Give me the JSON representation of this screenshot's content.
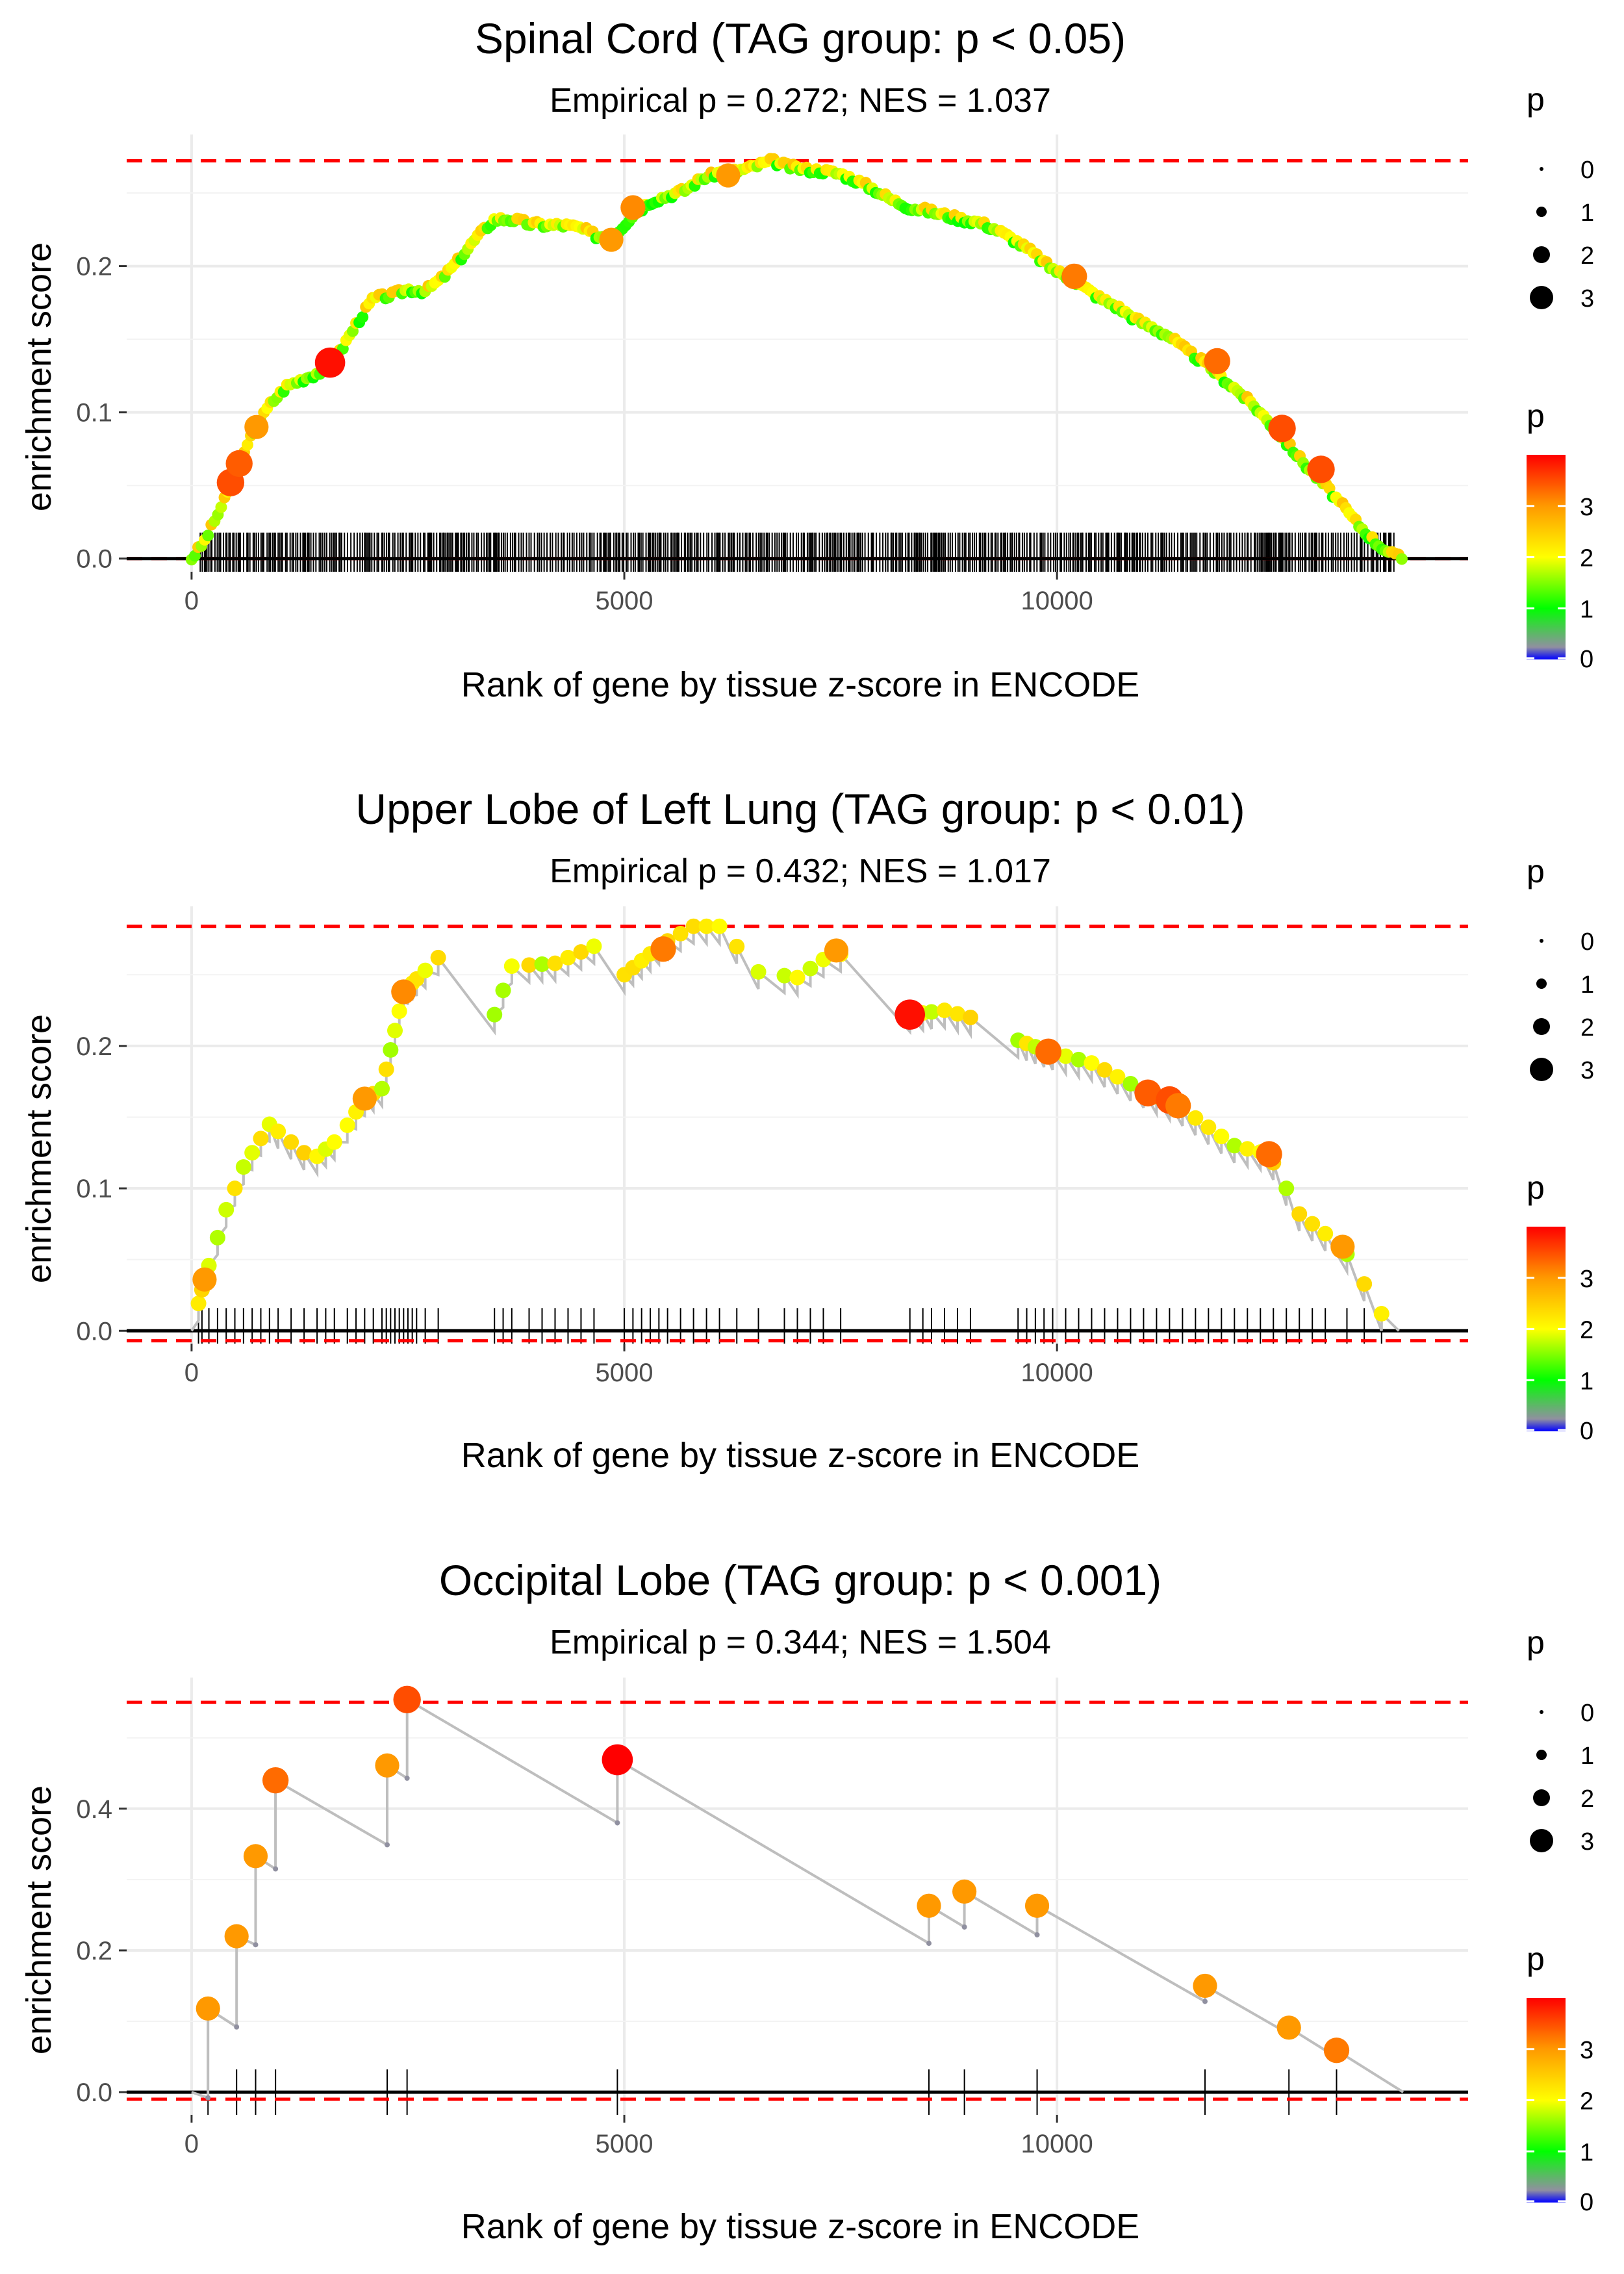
{
  "colors": {
    "threshold_line": "#ff0000",
    "running_line": "#bebebe",
    "zero_line": "#000000",
    "gridline": "#ebebeb",
    "colorbar": [
      "#0000ff",
      "#9090a0",
      "#00ff00",
      "#ffff00",
      "#ff9900",
      "#ff0000"
    ]
  },
  "legend": {
    "size_title": "p",
    "size_labels": [
      "0",
      "1",
      "2",
      "3"
    ],
    "color_title": "p",
    "color_labels": [
      "0",
      "1",
      "2",
      "3"
    ]
  },
  "chart_data": [
    {
      "type": "scatter",
      "title": "Spinal Cord (TAG group: p < 0.05)",
      "subtitle": "Empirical p = 0.272; NES = 1.037",
      "xlabel": "Rank of gene by tissue z-score in ENCODE",
      "ylabel": "enrichment score",
      "xlim": [
        -750,
        14750
      ],
      "ylim": [
        -0.009,
        0.29
      ],
      "xticks": [
        0,
        5000,
        10000
      ],
      "xtick_labels": [
        "0",
        "5000",
        "10000"
      ],
      "yticks": [
        0.0,
        0.1,
        0.2
      ],
      "ytick_labels": [
        "0.0",
        "0.1",
        "0.2"
      ],
      "max_es": 0.272,
      "min_es": 0.0,
      "dense": true,
      "curve_x": [
        0,
        150,
        300,
        500,
        700,
        900,
        1100,
        1300,
        1500,
        1700,
        1900,
        2100,
        2300,
        2500,
        2700,
        2900,
        3100,
        3300,
        3500,
        3700,
        3900,
        4100,
        4300,
        4500,
        4700,
        4900,
        5100,
        5300,
        5500,
        5700,
        5900,
        6100,
        6300,
        6500,
        6700,
        6900,
        7100,
        7300,
        7500,
        7700,
        7900,
        8100,
        8300,
        8500,
        8700,
        8900,
        9100,
        9300,
        9500,
        9700,
        9900,
        10100,
        10300,
        10500,
        10700,
        10900,
        11100,
        11300,
        11500,
        11700,
        11900,
        12100,
        12300,
        12500,
        12700,
        12900,
        13100,
        13300,
        13500,
        13700,
        13900,
        14000
      ],
      "curve_y": [
        0.0,
        0.012,
        0.03,
        0.055,
        0.085,
        0.105,
        0.118,
        0.123,
        0.128,
        0.14,
        0.16,
        0.178,
        0.18,
        0.184,
        0.183,
        0.192,
        0.205,
        0.22,
        0.232,
        0.232,
        0.229,
        0.228,
        0.228,
        0.226,
        0.22,
        0.222,
        0.235,
        0.244,
        0.248,
        0.252,
        0.26,
        0.264,
        0.265,
        0.268,
        0.272,
        0.268,
        0.266,
        0.265,
        0.263,
        0.258,
        0.252,
        0.245,
        0.24,
        0.238,
        0.235,
        0.232,
        0.23,
        0.225,
        0.218,
        0.21,
        0.2,
        0.193,
        0.186,
        0.178,
        0.172,
        0.164,
        0.158,
        0.152,
        0.142,
        0.134,
        0.124,
        0.114,
        0.103,
        0.09,
        0.076,
        0.062,
        0.05,
        0.036,
        0.022,
        0.01,
        0.002,
        0.0
      ],
      "highlight_x": [
        450,
        550,
        750,
        1600,
        4850,
        5100,
        6200,
        10200,
        11850,
        12600,
        13050
      ],
      "highlight_y": [
        0.052,
        0.065,
        0.09,
        0.134,
        0.218,
        0.24,
        0.262,
        0.193,
        0.135,
        0.089,
        0.061
      ],
      "highlight_p": [
        3.5,
        3.4,
        3.0,
        3.9,
        3.0,
        3.1,
        3.0,
        3.2,
        3.3,
        3.5,
        3.5
      ],
      "hit_ranks": "dense ticks spanning 100 to 13900"
    },
    {
      "type": "scatter",
      "title": "Upper Lobe of Left Lung (TAG group: p < 0.01)",
      "subtitle": "Empirical p = 0.432; NES = 1.017",
      "xlabel": "Rank of gene by tissue z-score in ENCODE",
      "ylabel": "enrichment score",
      "xlim": [
        -750,
        14750
      ],
      "ylim": [
        -0.009,
        0.298
      ],
      "xticks": [
        0,
        5000,
        10000
      ],
      "xtick_labels": [
        "0",
        "5000",
        "10000"
      ],
      "yticks": [
        0.0,
        0.1,
        0.2
      ],
      "ytick_labels": [
        "0.0",
        "0.1",
        "0.2"
      ],
      "max_es": 0.284,
      "min_es": -0.007,
      "hits_x": [
        80,
        120,
        200,
        300,
        400,
        500,
        600,
        700,
        800,
        900,
        1000,
        1150,
        1300,
        1450,
        1550,
        1650,
        1800,
        1900,
        2000,
        2100,
        2200,
        2250,
        2300,
        2350,
        2400,
        2450,
        2500,
        2550,
        2600,
        2700,
        2850,
        3500,
        3600,
        3700,
        3900,
        4050,
        4200,
        4350,
        4500,
        4650,
        5000,
        5100,
        5200,
        5300,
        5400,
        5500,
        5650,
        5800,
        5950,
        6100,
        6300,
        6550,
        6850,
        7000,
        7150,
        7300,
        7500,
        8300,
        8450,
        8550,
        8700,
        8850,
        9000,
        9550,
        9650,
        9750,
        9850,
        9950,
        10100,
        10250,
        10400,
        10550,
        10700,
        10850,
        11000,
        11150,
        11300,
        11450,
        11600,
        11750,
        11900,
        12050,
        12200,
        12350,
        12500,
        12650,
        12800,
        12950,
        13100,
        13350,
        13550,
        13750
      ],
      "highlight_x": [
        150,
        2000,
        2450,
        5450,
        7450,
        8300,
        9900,
        11050,
        11300,
        11400,
        12450,
        13300
      ],
      "highlight_y": [
        0.036,
        0.163,
        0.238,
        0.268,
        0.267,
        0.222,
        0.196,
        0.167,
        0.162,
        0.158,
        0.124,
        0.059
      ],
      "highlight_p": [
        3.0,
        3.0,
        3.1,
        3.2,
        3.0,
        3.9,
        3.3,
        3.4,
        3.5,
        3.2,
        3.3,
        3.0
      ],
      "hit_ranks": "ticks at listed hits_x"
    },
    {
      "type": "scatter",
      "title": "Occipital Lobe (TAG group: p < 0.001)",
      "subtitle": "Empirical p = 0.344; NES = 1.504",
      "xlabel": "Rank of gene by tissue z-score in ENCODE",
      "ylabel": "enrichment score",
      "xlim": [
        -750,
        14750
      ],
      "ylim": [
        -0.032,
        0.585
      ],
      "xticks": [
        0,
        5000,
        10000
      ],
      "xtick_labels": [
        "0",
        "5000",
        "10000"
      ],
      "yticks": [
        0.0,
        0.2,
        0.4
      ],
      "ytick_labels": [
        "0.0",
        "0.2",
        "0.4"
      ],
      "max_es": 0.55,
      "min_es": -0.01,
      "line_x": [
        0,
        190,
        190,
        520,
        520,
        740,
        740,
        970,
        970,
        2260,
        2260,
        2490,
        2490,
        4920,
        4920,
        8520,
        8520,
        8930,
        8930,
        9770,
        9770,
        11710,
        11710,
        12680,
        12680,
        13230,
        13230,
        14000
      ],
      "line_y": [
        0.0,
        -0.008,
        0.118,
        0.092,
        0.22,
        0.208,
        0.333,
        0.315,
        0.44,
        0.349,
        0.461,
        0.443,
        0.554,
        0.38,
        0.469,
        0.21,
        0.263,
        0.233,
        0.283,
        0.222,
        0.263,
        0.128,
        0.15,
        0.082,
        0.091,
        0.049,
        0.059,
        0.0
      ],
      "points_x": [
        190,
        520,
        740,
        970,
        2260,
        2490,
        4920,
        8520,
        8930,
        9770,
        11710,
        12680,
        13230
      ],
      "points_y": [
        0.118,
        0.22,
        0.333,
        0.44,
        0.461,
        0.554,
        0.469,
        0.263,
        0.283,
        0.263,
        0.15,
        0.091,
        0.059
      ],
      "points_p": [
        3.0,
        3.0,
        3.0,
        3.3,
        3.0,
        3.5,
        4.0,
        3.0,
        3.0,
        3.0,
        3.0,
        3.0,
        3.2
      ],
      "hit_ranks": "13 ticks at points_x"
    }
  ]
}
